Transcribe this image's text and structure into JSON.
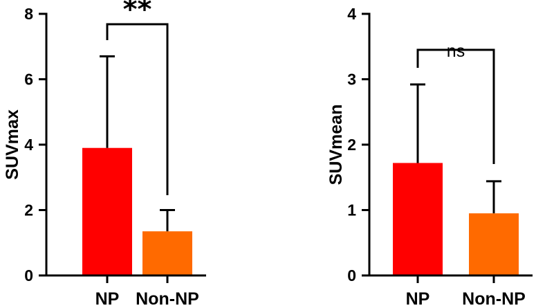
{
  "chart_data": [
    {
      "type": "bar",
      "title": "",
      "xlabel": "",
      "ylabel": "SUVmax",
      "ylim": [
        0,
        8
      ],
      "yticks": [
        "0",
        "2",
        "4",
        "6",
        "8"
      ],
      "categories": [
        "NP",
        "Non-NP"
      ],
      "values": [
        3.9,
        1.35
      ],
      "error_upper": [
        6.7,
        2.0
      ],
      "colors": [
        "#ff0000",
        "#ff6a00"
      ],
      "significance": {
        "from": "NP",
        "to": "Non-NP",
        "label": "**"
      }
    },
    {
      "type": "bar",
      "title": "",
      "xlabel": "",
      "ylabel": "SUVmean",
      "ylim": [
        0,
        4
      ],
      "yticks": [
        "0",
        "1",
        "2",
        "3",
        "4"
      ],
      "categories": [
        "NP",
        "Non-NP"
      ],
      "values": [
        1.72,
        0.95
      ],
      "error_upper": [
        2.92,
        1.44
      ],
      "colors": [
        "#ff0000",
        "#ff6a00"
      ],
      "significance": {
        "from": "NP",
        "to": "Non-NP",
        "label": "ns"
      }
    }
  ]
}
